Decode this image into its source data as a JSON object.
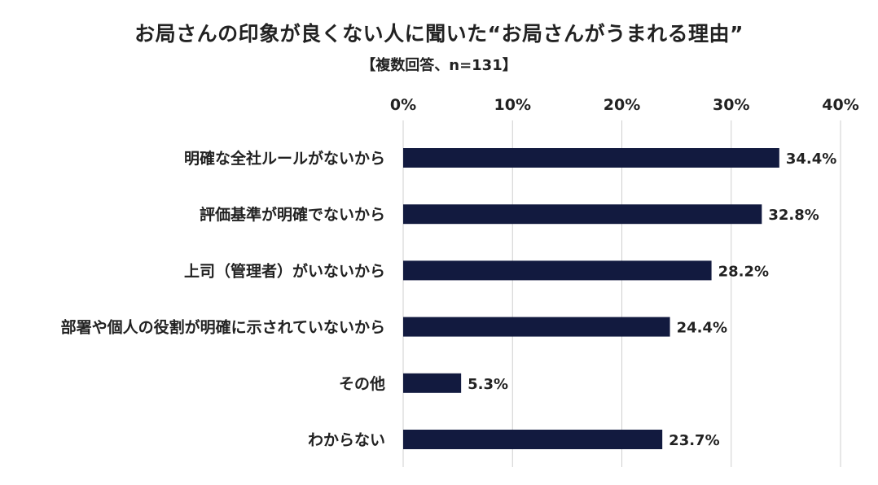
{
  "chart_data": {
    "type": "bar",
    "orientation": "horizontal",
    "title": "お局さんの印象が良くない人に聞いた“お局さんがうまれる理由”",
    "subtitle": "【複数回答、n=131】",
    "categories": [
      "明確な全社ルールがないから",
      "評価基準が明確でないから",
      "上司（管理者）がいないから",
      "部署や個人の役割が明確に示されていないから",
      "その他",
      "わからない"
    ],
    "values": [
      34.4,
      32.8,
      28.2,
      24.4,
      5.3,
      23.7
    ],
    "value_labels": [
      "34.4%",
      "32.8%",
      "28.2%",
      "24.4%",
      "5.3%",
      "23.7%"
    ],
    "x_ticks": [
      0,
      10,
      20,
      30,
      40
    ],
    "x_tick_labels": [
      "0%",
      "10%",
      "20%",
      "30%",
      "40%"
    ],
    "xlim": [
      0,
      40
    ],
    "x_axis_position": "top",
    "grid": true,
    "bar_color": "#121a3f",
    "grid_color": "#cfcfcf",
    "text_color": "#222222"
  }
}
